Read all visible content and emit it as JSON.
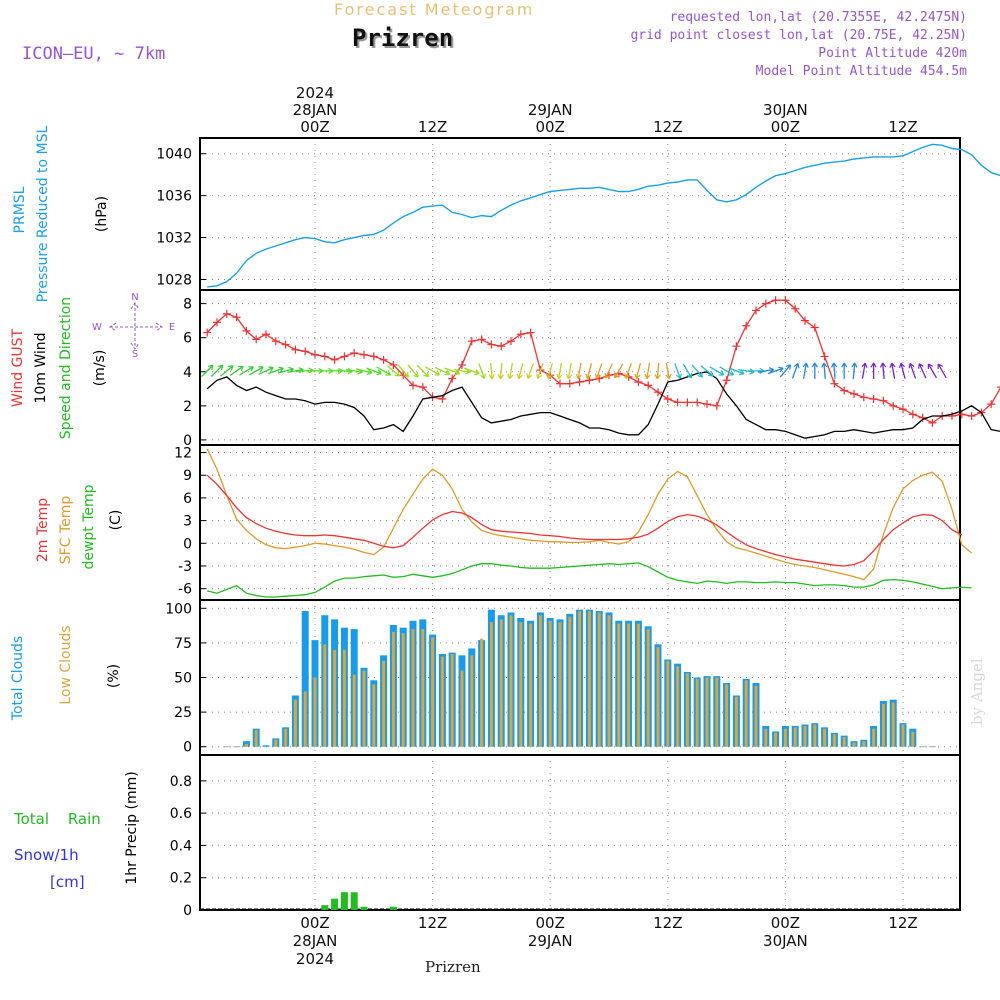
{
  "header": {
    "product": "Forecast Meteogram",
    "station": "Prizren",
    "model": "ICON—EU, ~ 7km",
    "requested": "requested lon,lat (20.7355E, 42.2475N)",
    "grid_point": "grid point closest lon,lat (20.75E, 42.25N)",
    "point_altitude": "Point Altitude 420m",
    "model_altitude": "Model Point Altitude 454.5m",
    "footer_station": "Prizren",
    "watermark": "by Angel"
  },
  "time_axis": {
    "top_labels": [
      {
        "hour": 0,
        "lines": [
          "2024",
          "28JAN",
          "00Z"
        ]
      },
      {
        "hour": 12,
        "lines": [
          "12Z"
        ]
      },
      {
        "hour": 24,
        "lines": [
          "29JAN",
          "00Z"
        ]
      },
      {
        "hour": 36,
        "lines": [
          "12Z"
        ]
      },
      {
        "hour": 48,
        "lines": [
          "30JAN",
          "00Z"
        ]
      },
      {
        "hour": 60,
        "lines": [
          "12Z"
        ]
      }
    ],
    "bottom_labels": [
      {
        "hour": 0,
        "lines": [
          "00Z",
          "28JAN",
          "2024"
        ]
      },
      {
        "hour": 12,
        "lines": [
          "12Z"
        ]
      },
      {
        "hour": 24,
        "lines": [
          "00Z",
          "29JAN"
        ]
      },
      {
        "hour": 36,
        "lines": [
          "12Z"
        ]
      },
      {
        "hour": 48,
        "lines": [
          "00Z",
          "30JAN"
        ]
      },
      {
        "hour": 60,
        "lines": [
          "12Z"
        ]
      }
    ]
  },
  "panels": {
    "pressure": {
      "labels": [
        "PRMSL",
        "Pressure Reduced to MSL",
        "(hPa)"
      ],
      "ticks": [
        "1028",
        "1032",
        "1036",
        "1040"
      ]
    },
    "wind": {
      "labels": [
        "Wind GUST",
        "10m Wind",
        "Speed and Direction",
        "(m/s)"
      ],
      "ticks": [
        "0",
        "2",
        "4",
        "6",
        "8"
      ],
      "compass": {
        "n": "N",
        "s": "S",
        "w": "W",
        "e": "E"
      }
    },
    "temp": {
      "labels": [
        "2m Temp",
        "SFC Temp",
        "dewpt Temp",
        "(C)"
      ],
      "ticks": [
        "-6",
        "-3",
        "0",
        "3",
        "6",
        "9",
        "12"
      ]
    },
    "clouds": {
      "labels": [
        "Total Clouds",
        "Low Clouds",
        "(%)"
      ],
      "ticks": [
        "0",
        "25",
        "50",
        "75",
        "100"
      ]
    },
    "precip": {
      "labels": [
        "Total",
        "Rain",
        "Snow/1h",
        "[cm]",
        "1hr Precip (mm)"
      ],
      "ticks": [
        "0",
        "0.2",
        "0.4",
        "0.6",
        "0.8"
      ]
    }
  },
  "colors": {
    "prmsl": "#1aa0e6",
    "gust": "#ee3333",
    "wind": "#000000",
    "t2m": "#ee3333",
    "tsfc": "#e09a2a",
    "dewpt": "#22bb22",
    "total_clouds": "#1a9be8",
    "low_clouds": "#d9a640",
    "rain": "#22bb22",
    "snow": "#3333dd",
    "header": "#9955cc",
    "title_faded": "#e8c07a"
  },
  "chart_data": [
    {
      "type": "line",
      "title": "PRMSL Pressure Reduced to MSL",
      "ylabel": "(hPa)",
      "ylim": [
        1027,
        1041.5
      ],
      "x_hour_start": -11,
      "x_step_hours": 1,
      "series": [
        {
          "name": "PRMSL",
          "values": [
            1027.3,
            1027.4,
            1027.8,
            1028.6,
            1029.8,
            1030.5,
            1030.9,
            1031.2,
            1031.5,
            1031.8,
            1032.0,
            1031.9,
            1031.6,
            1031.5,
            1031.8,
            1032.0,
            1032.2,
            1032.3,
            1032.7,
            1033.4,
            1034.0,
            1034.4,
            1034.9,
            1035.0,
            1035.1,
            1034.4,
            1034.2,
            1033.9,
            1034.1,
            1034.0,
            1034.6,
            1035.1,
            1035.5,
            1035.8,
            1036.1,
            1036.4,
            1036.5,
            1036.6,
            1036.7,
            1036.7,
            1036.8,
            1036.6,
            1036.4,
            1036.4,
            1036.6,
            1036.9,
            1037.0,
            1037.2,
            1037.3,
            1037.5,
            1037.5,
            1036.5,
            1035.6,
            1035.4,
            1035.6,
            1036.1,
            1036.8,
            1037.4,
            1037.9,
            1038.1,
            1038.4,
            1038.7,
            1038.9,
            1039.1,
            1039.2,
            1039.3,
            1039.5,
            1039.6,
            1039.7,
            1039.7,
            1039.7,
            1039.8,
            1040.2,
            1040.6,
            1040.9,
            1040.8,
            1040.5,
            1040.4,
            1039.9,
            1038.9,
            1038.2,
            1037.9,
            1037.8,
            1037.9,
            1038.3,
            1038.7
          ]
        }
      ]
    },
    {
      "type": "line",
      "title": "Wind GUST / 10m Wind Speed and Direction",
      "ylabel": "(m/s)",
      "ylim": [
        -0.3,
        8.8
      ],
      "x_hour_start": -11,
      "x_step_hours": 1,
      "series": [
        {
          "name": "Wind GUST",
          "values": [
            6.3,
            6.9,
            7.4,
            7.2,
            6.4,
            5.9,
            6.2,
            5.8,
            5.6,
            5.3,
            5.2,
            5.0,
            4.9,
            4.7,
            4.9,
            5.1,
            5.0,
            4.9,
            4.7,
            4.4,
            3.8,
            3.2,
            3.1,
            2.5,
            2.4,
            3.6,
            4.4,
            5.8,
            5.9,
            5.6,
            5.5,
            5.8,
            6.2,
            6.3,
            4.1,
            3.8,
            3.3,
            3.3,
            3.4,
            3.5,
            3.6,
            3.8,
            3.9,
            3.7,
            3.4,
            3.2,
            2.8,
            2.4,
            2.2,
            2.2,
            2.2,
            2.1,
            2.0,
            3.5,
            5.5,
            6.7,
            7.6,
            8.0,
            8.2,
            8.2,
            7.7,
            7.0,
            6.6,
            4.9,
            3.3,
            2.9,
            2.7,
            2.5,
            2.4,
            2.3,
            2.0,
            1.8,
            1.5,
            1.3,
            1.0,
            1.4,
            1.4,
            1.5,
            1.4,
            1.6,
            2.1,
            3.1,
            4.1,
            4.1,
            4.2,
            4.1,
            4.2,
            3.5,
            1.6
          ]
        },
        {
          "name": "10m Wind",
          "values": [
            3.0,
            3.5,
            3.7,
            3.2,
            2.9,
            3.1,
            2.8,
            2.6,
            2.4,
            2.4,
            2.3,
            2.1,
            2.2,
            2.2,
            2.1,
            1.9,
            1.4,
            0.6,
            0.7,
            0.9,
            0.5,
            1.4,
            2.4,
            2.5,
            2.6,
            2.9,
            3.1,
            2.2,
            1.3,
            1.0,
            1.1,
            1.2,
            1.4,
            1.5,
            1.6,
            1.6,
            1.4,
            1.2,
            1.0,
            0.7,
            0.7,
            0.6,
            0.4,
            0.3,
            0.3,
            0.9,
            2.1,
            3.4,
            3.5,
            3.7,
            3.9,
            4.0,
            3.6,
            2.7,
            2.0,
            1.2,
            0.9,
            0.6,
            0.6,
            0.5,
            0.3,
            0.1,
            0.2,
            0.3,
            0.5,
            0.5,
            0.6,
            0.5,
            0.4,
            0.5,
            0.6,
            0.6,
            0.7,
            1.2,
            1.4,
            1.4,
            1.5,
            1.7,
            2.0,
            1.6,
            0.6,
            0.5
          ]
        },
        {
          "name": "Wind direction (from, deg)",
          "values": [
            225,
            225,
            230,
            235,
            240,
            240,
            245,
            250,
            255,
            260,
            265,
            270,
            270,
            270,
            275,
            280,
            285,
            290,
            300,
            310,
            320,
            320,
            315,
            300,
            295,
            290,
            280,
            290,
            340,
            355,
            5,
            10,
            15,
            20,
            20,
            15,
            10,
            10,
            10,
            15,
            20,
            25,
            30,
            20,
            15,
            10,
            5,
            350,
            340,
            330,
            320,
            310,
            300,
            300,
            290,
            280,
            270,
            260,
            250,
            220,
            200,
            190,
            180,
            175,
            175,
            180,
            185,
            190,
            180,
            175,
            170,
            165,
            160,
            155,
            150,
            150
          ]
        }
      ]
    },
    {
      "type": "line",
      "title": "2m Temp / SFC Temp / dewpt Temp",
      "ylabel": "(C)",
      "ylim": [
        -7.5,
        13
      ],
      "x_hour_start": -11,
      "x_step_hours": 1,
      "series": [
        {
          "name": "2m Temp",
          "values": [
            9.0,
            7.8,
            6.3,
            4.7,
            3.4,
            2.6,
            2.0,
            1.6,
            1.3,
            1.1,
            1.0,
            1.0,
            1.1,
            1.0,
            0.8,
            0.6,
            0.4,
            0.0,
            -0.4,
            -0.6,
            -0.3,
            0.8,
            2.0,
            3.1,
            3.8,
            4.2,
            4.0,
            3.4,
            2.5,
            1.8,
            1.6,
            1.5,
            1.4,
            1.3,
            1.1,
            1.0,
            0.9,
            0.7,
            0.6,
            0.5,
            0.5,
            0.5,
            0.5,
            0.6,
            0.8,
            1.2,
            2.0,
            2.9,
            3.5,
            3.8,
            3.6,
            3.1,
            2.4,
            1.5,
            0.6,
            -0.2,
            -0.7,
            -1.1,
            -1.5,
            -1.8,
            -2.1,
            -2.3,
            -2.5,
            -2.7,
            -2.9,
            -3.0,
            -2.8,
            -2.3,
            -1.0,
            0.5,
            1.8,
            2.7,
            3.5,
            3.8,
            3.7,
            3.0,
            1.8,
            1.1
          ]
        },
        {
          "name": "SFC Temp",
          "values": [
            12.5,
            9.8,
            6.3,
            3.2,
            1.7,
            0.6,
            -0.2,
            -0.6,
            -0.7,
            -0.5,
            -0.3,
            0.0,
            -0.1,
            -0.3,
            -0.5,
            -0.8,
            -1.2,
            -1.5,
            -0.5,
            2.0,
            4.5,
            6.5,
            8.5,
            9.8,
            9.0,
            7.2,
            4.5,
            2.8,
            1.7,
            1.3,
            1.0,
            0.8,
            0.6,
            0.4,
            0.3,
            0.2,
            0.2,
            0.1,
            0.1,
            0.2,
            0.4,
            0.1,
            -0.1,
            0.2,
            1.5,
            3.8,
            6.5,
            8.5,
            9.5,
            8.8,
            6.3,
            3.8,
            1.8,
            0.2,
            -0.6,
            -0.9,
            -1.3,
            -1.7,
            -2.1,
            -2.5,
            -2.8,
            -3.0,
            -3.2,
            -3.5,
            -3.8,
            -4.1,
            -4.4,
            -4.8,
            -3.4,
            1.2,
            4.7,
            7.2,
            8.3,
            9.0,
            9.4,
            8.2,
            4.5,
            -0.2,
            -1.3
          ]
        },
        {
          "name": "dewpt Temp",
          "values": [
            -6.3,
            -6.6,
            -6.1,
            -5.6,
            -6.6,
            -6.9,
            -7.1,
            -7.1,
            -7.0,
            -6.9,
            -6.8,
            -6.5,
            -5.8,
            -5.0,
            -4.6,
            -4.6,
            -4.4,
            -4.3,
            -4.2,
            -4.5,
            -4.4,
            -4.1,
            -4.3,
            -4.5,
            -4.3,
            -4.0,
            -3.5,
            -3.0,
            -2.7,
            -2.7,
            -2.9,
            -3.0,
            -3.2,
            -3.3,
            -3.3,
            -3.3,
            -3.2,
            -3.1,
            -3.0,
            -2.9,
            -2.8,
            -2.7,
            -2.8,
            -2.7,
            -2.6,
            -3.1,
            -3.8,
            -4.5,
            -4.9,
            -5.1,
            -5.3,
            -5.0,
            -5.1,
            -5.3,
            -5.1,
            -5.1,
            -5.2,
            -5.2,
            -5.1,
            -5.2,
            -5.2,
            -5.4,
            -5.6,
            -5.5,
            -5.5,
            -5.6,
            -5.8,
            -5.8,
            -5.5,
            -4.9,
            -4.8,
            -4.9,
            -5.1,
            -5.4,
            -5.7,
            -6.0,
            -5.9,
            -5.8,
            -5.9
          ]
        }
      ]
    },
    {
      "type": "bar",
      "title": "Total Clouds / Low Clouds",
      "ylabel": "(%)",
      "ylim": [
        -6,
        106
      ],
      "x_hour_start": -9,
      "x_step_hours": 1,
      "series": [
        {
          "name": "Total Clouds",
          "values": [
            0,
            0,
            4,
            13,
            1,
            6,
            14,
            37,
            98,
            77,
            95,
            92,
            86,
            85,
            57,
            48,
            66,
            88,
            86,
            91,
            92,
            81,
            67,
            68,
            66,
            71,
            77,
            99,
            95,
            97,
            93,
            91,
            97,
            93,
            92,
            96,
            99,
            99,
            98,
            97,
            91,
            91,
            91,
            87,
            74,
            63,
            60,
            54,
            50,
            51,
            51,
            46,
            37,
            49,
            46,
            15,
            11,
            15,
            15,
            16,
            17,
            14,
            10,
            8,
            4,
            5,
            15,
            33,
            34,
            17,
            13,
            0,
            0
          ]
        },
        {
          "name": "Low Clouds",
          "values": [
            0,
            0,
            2,
            12,
            0,
            5,
            13,
            34,
            40,
            50,
            74,
            70,
            70,
            52,
            55,
            45,
            62,
            83,
            82,
            85,
            85,
            79,
            65,
            67,
            55,
            66,
            78,
            90,
            92,
            95,
            90,
            89,
            95,
            91,
            90,
            94,
            98,
            98,
            97,
            95,
            89,
            89,
            89,
            85,
            72,
            62,
            58,
            53,
            49,
            50,
            50,
            45,
            36,
            48,
            44,
            13,
            10,
            13,
            14,
            15,
            16,
            13,
            9,
            7,
            3,
            4,
            13,
            31,
            32,
            16,
            11,
            0,
            0
          ]
        }
      ]
    },
    {
      "type": "bar",
      "title": "1hr Precip",
      "ylabel": "1hr Precip (mm)",
      "ylim": [
        0,
        0.96
      ],
      "x_hour_start": -9,
      "x_step_hours": 1,
      "series": [
        {
          "name": "Total",
          "values": [
            0,
            0,
            0,
            0,
            0,
            0,
            0,
            0,
            0,
            0,
            0.03,
            0.07,
            0.11,
            0.11,
            0.02,
            0.0,
            0.0,
            0.02,
            0,
            0,
            0,
            0,
            0,
            0,
            0,
            0,
            0,
            0,
            0,
            0,
            0,
            0,
            0,
            0,
            0,
            0,
            0,
            0,
            0,
            0,
            0,
            0,
            0,
            0,
            0,
            0,
            0,
            0,
            0,
            0,
            0,
            0,
            0,
            0,
            0,
            0,
            0,
            0,
            0,
            0,
            0,
            0,
            0,
            0,
            0,
            0,
            0,
            0,
            0,
            0,
            0,
            0,
            0
          ]
        },
        {
          "name": "Snow/1h",
          "values": [
            0,
            0,
            0,
            0,
            0,
            0,
            0,
            0,
            0,
            0,
            0,
            0,
            0,
            0,
            0,
            0,
            0,
            0,
            0,
            0,
            0,
            0,
            0,
            0,
            0,
            0,
            0,
            0,
            0,
            0,
            0,
            0,
            0,
            0,
            0,
            0,
            0,
            0,
            0,
            0,
            0,
            0,
            0,
            0,
            0,
            0,
            0,
            0,
            0,
            0,
            0,
            0,
            0,
            0,
            0,
            0,
            0,
            0,
            0,
            0,
            0,
            0,
            0,
            0,
            0,
            0,
            0,
            0,
            0,
            0,
            0,
            0,
            0
          ]
        }
      ]
    }
  ]
}
